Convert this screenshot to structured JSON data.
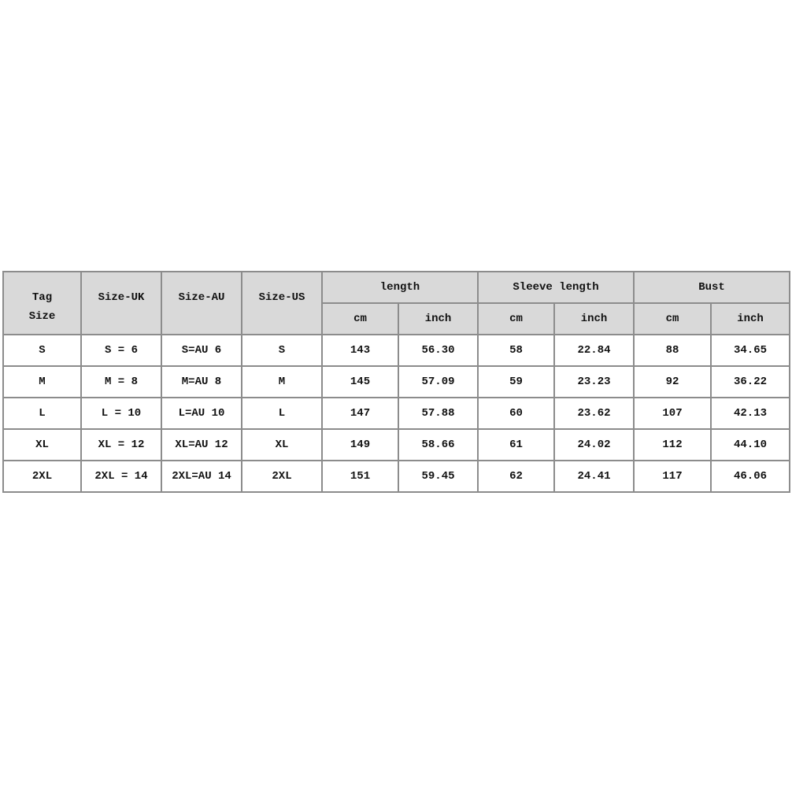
{
  "table": {
    "headers": {
      "tag_size": "Tag Size",
      "size_uk": "Size-UK",
      "size_au": "Size-AU",
      "size_us": "Size-US",
      "groups": [
        "length",
        "Sleeve length",
        "Bust"
      ],
      "units": [
        "cm",
        "inch",
        "cm",
        "inch",
        "cm",
        "inch"
      ]
    },
    "header_bg": "#d9d9d9",
    "border_color": "#8c8c8c",
    "rows": [
      [
        "S",
        "S = 6",
        "S=AU 6",
        "S",
        "143",
        "56.30",
        "58",
        "22.84",
        "88",
        "34.65"
      ],
      [
        "M",
        "M = 8",
        "M=AU 8",
        "M",
        "145",
        "57.09",
        "59",
        "23.23",
        "92",
        "36.22"
      ],
      [
        "L",
        "L = 10",
        "L=AU 10",
        "L",
        "147",
        "57.88",
        "60",
        "23.62",
        "107",
        "42.13"
      ],
      [
        "XL",
        "XL = 12",
        "XL=AU 12",
        "XL",
        "149",
        "58.66",
        "61",
        "24.02",
        "112",
        "44.10"
      ],
      [
        "2XL",
        "2XL = 14",
        "2XL=AU 14",
        "2XL",
        "151",
        "59.45",
        "62",
        "24.41",
        "117",
        "46.06"
      ]
    ]
  }
}
